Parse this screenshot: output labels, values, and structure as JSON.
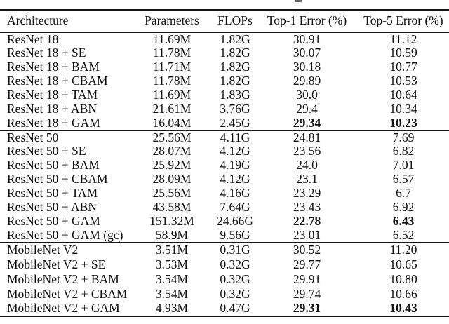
{
  "page": {
    "background": "#ffffff",
    "text_color": "#111111",
    "rule_color": "#161616"
  },
  "table": {
    "headers": [
      "Architecture",
      "Parameters",
      "FLOPs",
      "Top-1 Error (%)",
      "Top-5 Error (%)"
    ],
    "sections": [
      {
        "rows": [
          {
            "cells": [
              "ResNet 18",
              "11.69M",
              "1.82G",
              "30.91",
              "11.12"
            ],
            "bold": []
          },
          {
            "cells": [
              "ResNet 18 + SE",
              "11.78M",
              "1.82G",
              "30.07",
              "10.59"
            ],
            "bold": []
          },
          {
            "cells": [
              "ResNet 18 + BAM",
              "11.71M",
              "1.82G",
              "30.18",
              "10.77"
            ],
            "bold": []
          },
          {
            "cells": [
              "ResNet 18 + CBAM",
              "11.78M",
              "1.82G",
              "29.89",
              "10.53"
            ],
            "bold": []
          },
          {
            "cells": [
              "ResNet 18 + TAM",
              "11.69M",
              "1.83G",
              "30.0",
              "10.64"
            ],
            "bold": []
          },
          {
            "cells": [
              "ResNet 18 + ABN",
              "21.61M",
              "3.76G",
              "29.4",
              "10.34"
            ],
            "bold": []
          },
          {
            "cells": [
              "ResNet 18 + GAM",
              "16.04M",
              "2.45G",
              "29.34",
              "10.23"
            ],
            "bold": [
              3,
              4
            ]
          }
        ]
      },
      {
        "rows": [
          {
            "cells": [
              "ResNet 50",
              "25.56M",
              "4.11G",
              "24.81",
              "7.69"
            ],
            "bold": []
          },
          {
            "cells": [
              "ResNet 50 + SE",
              "28.07M",
              "4.12G",
              "23.56",
              "6.82"
            ],
            "bold": []
          },
          {
            "cells": [
              "ResNet 50 + BAM",
              "25.92M",
              "4.19G",
              "24.0",
              "7.01"
            ],
            "bold": []
          },
          {
            "cells": [
              "ResNet 50 + CBAM",
              "28.09M",
              "4.12G",
              "23.1",
              "6.57"
            ],
            "bold": []
          },
          {
            "cells": [
              "ResNet 50 + TAM",
              "25.56M",
              "4.16G",
              "23.29",
              "6.7"
            ],
            "bold": []
          },
          {
            "cells": [
              "ResNet 50 + ABN",
              "43.58M",
              "7.64G",
              "23.43",
              "6.92"
            ],
            "bold": []
          },
          {
            "cells": [
              "ResNet 50 + GAM",
              "151.32M",
              "24.66G",
              "22.78",
              "6.43"
            ],
            "bold": [
              3,
              4
            ]
          },
          {
            "cells": [
              "ResNet 50 + GAM (gc)",
              "58.9M",
              "9.56G",
              "23.01",
              "6.52"
            ],
            "bold": []
          }
        ]
      },
      {
        "rows": [
          {
            "cells": [
              "MobileNet V2",
              "3.51M",
              "0.31G",
              "30.52",
              "11.20"
            ],
            "bold": []
          },
          {
            "cells": [
              "MobileNet V2 + SE",
              "3.53M",
              "0.32G",
              "29.77",
              "10.65"
            ],
            "bold": []
          },
          {
            "cells": [
              "MobileNet V2 + BAM",
              "3.54M",
              "0.32G",
              "29.91",
              "10.80"
            ],
            "bold": []
          },
          {
            "cells": [
              "MobileNet V2 + CBAM",
              "3.54M",
              "0.32G",
              "29.74",
              "10.66"
            ],
            "bold": []
          },
          {
            "cells": [
              "MobileNet V2 + GAM",
              "4.93M",
              "0.47G",
              "29.31",
              "10.43"
            ],
            "bold": [
              3,
              4
            ]
          }
        ]
      }
    ]
  }
}
